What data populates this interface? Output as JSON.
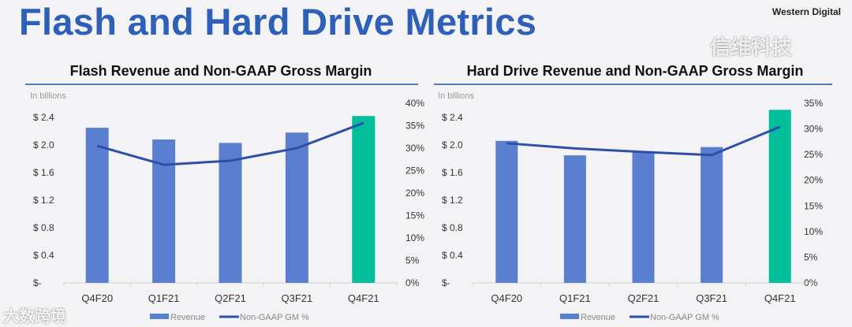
{
  "header": {
    "title": "Flash and Hard Drive Metrics",
    "brand": "Western Digital"
  },
  "watermarks": [
    "大数跨境",
    "信维科技"
  ],
  "colors": {
    "bar": "#5b7fd0",
    "bar_highlight": "#00bf9a",
    "line": "#2e4fa8",
    "title": "#2e5fb9"
  },
  "chart_data": [
    {
      "type": "bar",
      "title": "Flash Revenue and Non-GAAP Gross Margin",
      "unit_label": "In billions",
      "categories": [
        "Q4F20",
        "Q1F21",
        "Q2F21",
        "Q3F21",
        "Q4F21"
      ],
      "series": [
        {
          "name": "Revenue",
          "type": "bar",
          "axis": "left",
          "values": [
            2.25,
            2.08,
            2.03,
            2.18,
            2.42
          ]
        },
        {
          "name": "Non-GAAP GM %",
          "type": "line",
          "axis": "right",
          "values": [
            30.5,
            26.3,
            27.2,
            30.0,
            35.6
          ]
        }
      ],
      "highlight_index": 4,
      "ylim": [
        0,
        2.4
      ],
      "y_ticks": [
        "$-",
        "$ 0.4",
        "$ 0.8",
        "$ 1.2",
        "$ 1.6",
        "$ 2.0",
        "$ 2.4"
      ],
      "y2lim": [
        0,
        40
      ],
      "y2_ticks": [
        "0%",
        "5%",
        "10%",
        "15%",
        "20%",
        "25%",
        "30%",
        "35%",
        "40%"
      ],
      "legend": [
        "Revenue",
        "Non-GAAP GM %"
      ],
      "legend_position": "bottom"
    },
    {
      "type": "bar",
      "title": "Hard Drive Revenue and Non-GAAP Gross Margin",
      "unit_label": "In billions",
      "categories": [
        "Q4F20",
        "Q1F21",
        "Q2F21",
        "Q3F21",
        "Q4F21"
      ],
      "series": [
        {
          "name": "Revenue",
          "type": "bar",
          "axis": "left",
          "values": [
            2.06,
            1.85,
            1.91,
            1.97,
            2.51
          ]
        },
        {
          "name": "Non-GAAP GM %",
          "type": "line",
          "axis": "right",
          "values": [
            27.2,
            26.2,
            25.5,
            24.9,
            30.4
          ]
        }
      ],
      "highlight_index": 4,
      "ylim": [
        0,
        2.4
      ],
      "y_ticks": [
        "$-",
        "$ 0.4",
        "$ 0.8",
        "$ 1.2",
        "$ 1.6",
        "$ 2.0",
        "$ 2.4"
      ],
      "y2lim": [
        0,
        35
      ],
      "y2_ticks": [
        "0%",
        "5%",
        "10%",
        "15%",
        "20%",
        "25%",
        "30%",
        "35%"
      ],
      "legend": [
        "Revenue",
        "Non-GAAP GM %"
      ],
      "legend_position": "bottom"
    }
  ]
}
